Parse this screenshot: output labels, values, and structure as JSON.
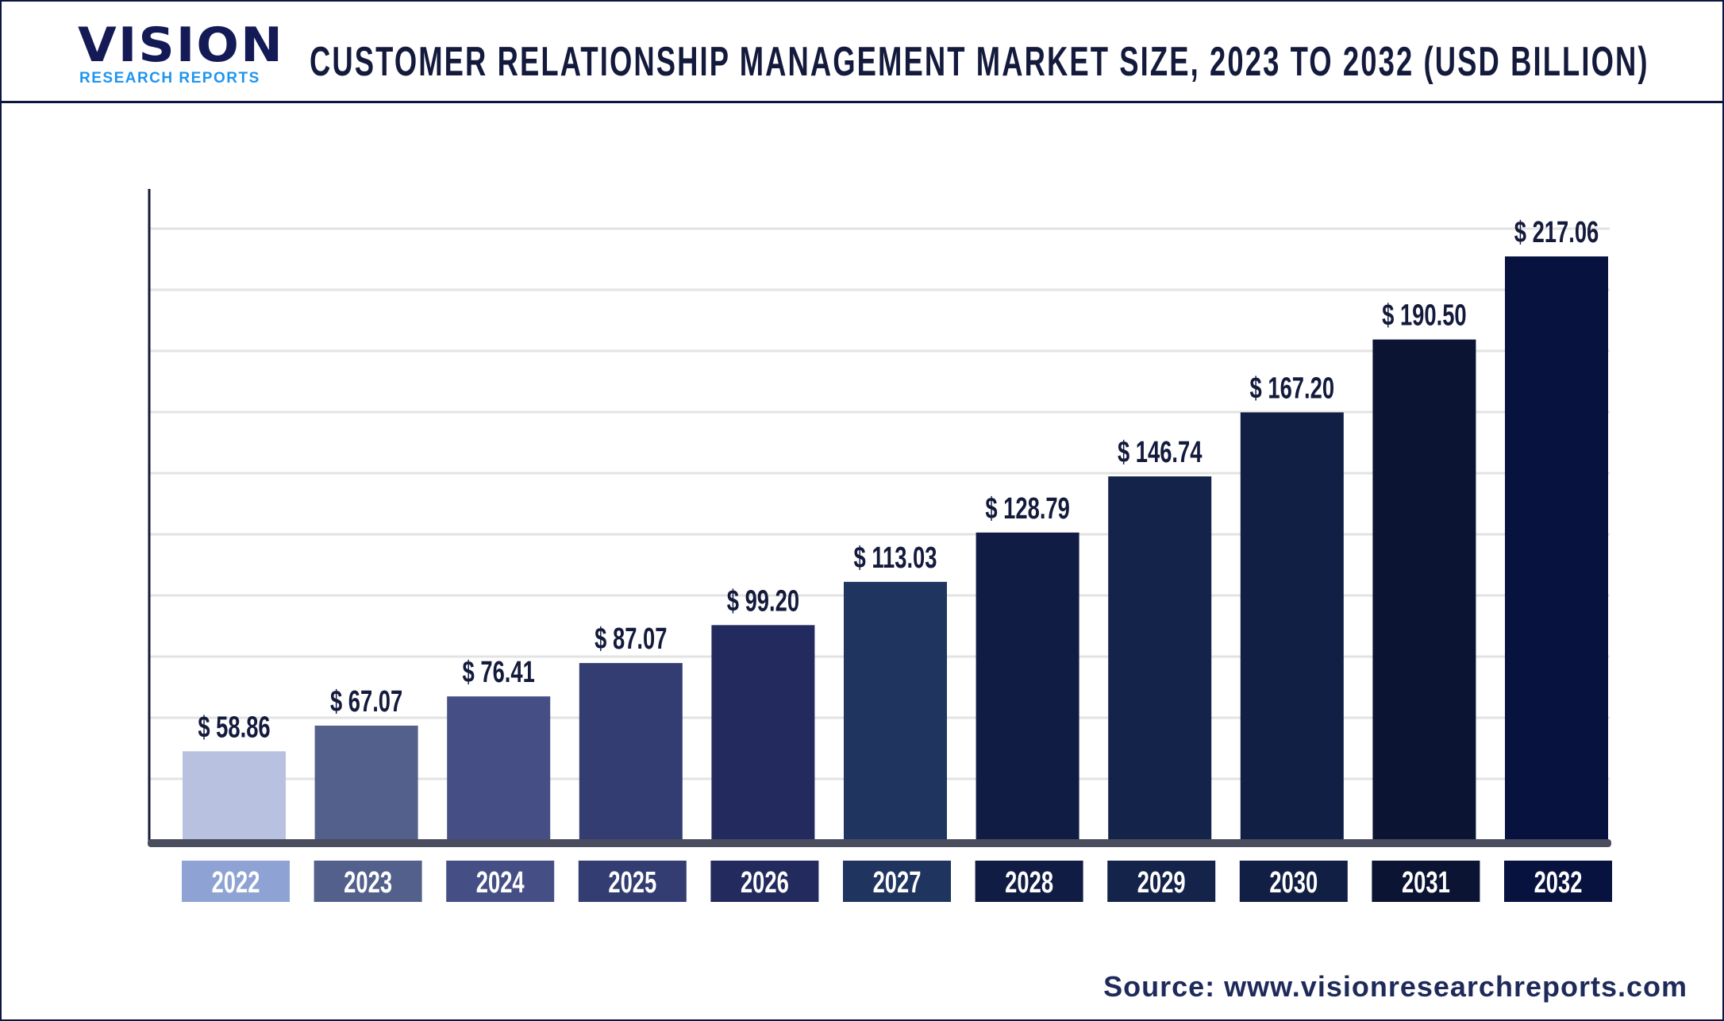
{
  "header": {
    "logo_text": "VISION",
    "logo_subtext": "RESEARCH REPORTS",
    "title": "CUSTOMER RELATIONSHIP MANAGEMENT MARKET SIZE, 2023 TO 2032 (USD BILLION)"
  },
  "chart_data": {
    "type": "bar",
    "title": "CUSTOMER RELATIONSHIP MANAGEMENT MARKET SIZE, 2023 TO 2032 (USD BILLION)",
    "categories": [
      "2022",
      "2023",
      "2024",
      "2025",
      "2026",
      "2027",
      "2028",
      "2029",
      "2030",
      "2031",
      "2032"
    ],
    "values": [
      58.86,
      67.07,
      76.41,
      87.07,
      99.2,
      113.03,
      128.79,
      146.74,
      167.2,
      190.5,
      217.06
    ],
    "value_labels": [
      "$ 58.86",
      "$ 67.07",
      "$ 76.41",
      "$ 87.07",
      "$ 99.20",
      "$ 113.03",
      "$ 128.79",
      "$ 146.74",
      "$ 167.20",
      "$ 190.50",
      "$ 217.06"
    ],
    "bar_colors": [
      "#b8c2e0",
      "#54608c",
      "#454f86",
      "#333d72",
      "#232a5e",
      "#1f355f",
      "#111c44",
      "#14234a",
      "#121f45",
      "#0c1434",
      "#07123e"
    ],
    "label_colors": [
      "#8ea3d4",
      "#54608c",
      "#454f86",
      "#333d72",
      "#232a5e",
      "#1f355f",
      "#111c44",
      "#14234a",
      "#121f45",
      "#0c1434",
      "#07123e"
    ],
    "xlabel": "",
    "ylabel": "",
    "ylim": [
      30,
      230
    ],
    "grid": true,
    "legend": "none"
  },
  "footer": {
    "source": "Source: www.visionresearchreports.com"
  }
}
